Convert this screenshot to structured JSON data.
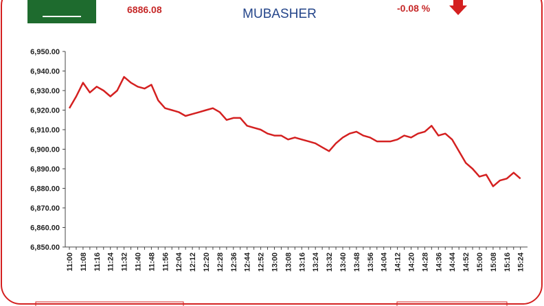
{
  "chart_data": {
    "type": "line",
    "index_value": "6886.08",
    "brand": "MUBASHER",
    "change": "-0.08 %",
    "categories": [
      "11:00",
      null,
      "11:08",
      null,
      "11:16",
      null,
      "11:24",
      null,
      "11:32",
      null,
      "11:40",
      null,
      "11:48",
      null,
      "11:56",
      null,
      "12:04",
      null,
      "12:12",
      null,
      "12:20",
      null,
      "12:28",
      null,
      "12:36",
      null,
      "12:44",
      null,
      "12:52",
      null,
      "13:00",
      null,
      "13:08",
      null,
      "13:16",
      null,
      "13:24",
      null,
      "13:32",
      null,
      "13:40",
      null,
      "13:48",
      null,
      "13:56",
      null,
      "14:04",
      null,
      "14:12",
      null,
      "14:20",
      null,
      "14:28",
      null,
      "14:36",
      null,
      "14:44",
      null,
      "14:52",
      null,
      "15:00",
      null,
      "15:08",
      null,
      "15:16",
      null,
      "15:24"
    ],
    "series": [
      {
        "color": "#d42020",
        "values": [
          6921,
          6927,
          6934,
          6929,
          6932,
          6930,
          6927,
          6930,
          6937,
          6934,
          6932,
          6931,
          6933,
          6925,
          6921,
          6920,
          6919,
          6917,
          6918,
          6919,
          6920,
          6921,
          6919,
          6915,
          6916,
          6916,
          6912,
          6911,
          6910,
          6908,
          6907,
          6907,
          6905,
          6906,
          6905,
          6904,
          6903,
          6901,
          6899,
          6903,
          6906,
          6908,
          6909,
          6907,
          6906,
          6904,
          6904,
          6904,
          6905,
          6907,
          6906,
          6908,
          6909,
          6912,
          6907,
          6908,
          6905,
          6899,
          6893,
          6890,
          6886,
          6887,
          6881,
          6884,
          6885,
          6888,
          6885
        ]
      }
    ],
    "ylim": [
      6850,
      6950
    ],
    "yticks": [
      {
        "value": 6850,
        "label": "6,850.00"
      },
      {
        "value": 6860,
        "label": "6,860.00"
      },
      {
        "value": 6870,
        "label": "6,870.00"
      },
      {
        "value": 6880,
        "label": "6,880.00"
      },
      {
        "value": 6890,
        "label": "6,890.00"
      },
      {
        "value": 6900,
        "label": "6,900.00"
      },
      {
        "value": 6910,
        "label": "6,910.00"
      },
      {
        "value": 6920,
        "label": "6,920.00"
      },
      {
        "value": 6930,
        "label": "6,930.00"
      },
      {
        "value": 6940,
        "label": "6,940.00"
      },
      {
        "value": 6950,
        "label": "6,950.00"
      }
    ]
  }
}
